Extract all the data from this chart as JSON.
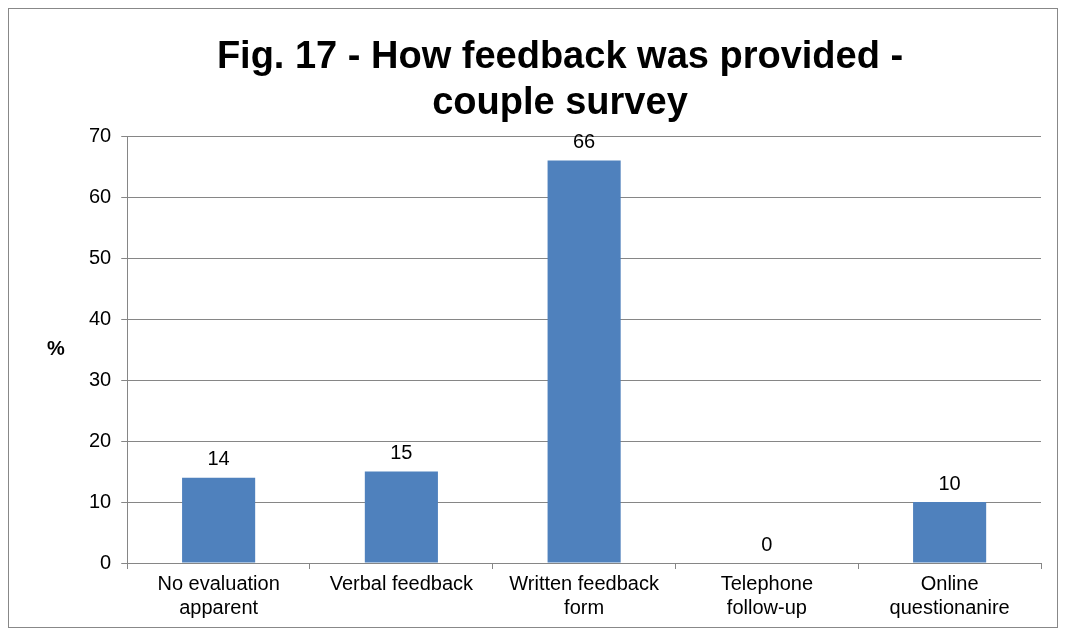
{
  "chart_data": {
    "type": "bar",
    "title": "Fig. 17 - How feedback was provided - couple survey",
    "ylabel": "%",
    "categories": [
      "No evaluation apparent",
      "Verbal feedback",
      "Written feedback form",
      "Telephone follow-up",
      "Online questionanire"
    ],
    "values": [
      14,
      15,
      66,
      0,
      10
    ],
    "color": "#4f81bd",
    "ylim": [
      0,
      70
    ],
    "yticks": [
      0,
      10,
      20,
      30,
      40,
      50,
      60,
      70
    ],
    "grid": "y",
    "data_labels": true,
    "legend": false
  }
}
